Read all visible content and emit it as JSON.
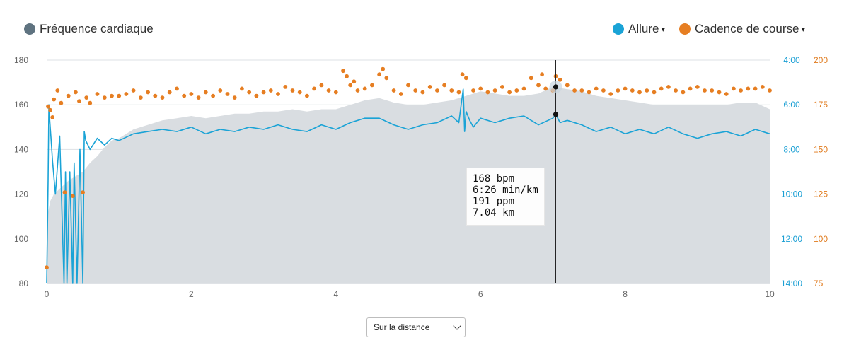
{
  "legend": {
    "heart_rate": {
      "label": "Fréquence cardiaque",
      "color": "#5f7380"
    },
    "pace": {
      "label": "Allure",
      "color": "#1aa3d6",
      "caret": "▾"
    },
    "cadence": {
      "label": "Cadence de course",
      "color": "#e67e22",
      "caret": "▾"
    }
  },
  "tooltip": {
    "heart_rate": "168 bpm",
    "pace": "6:26 min/km",
    "cadence": "191 ppm",
    "distance": "7.04 km"
  },
  "selector": {
    "value": "Sur la distance",
    "icon": "chevron-down-icon"
  },
  "chart_data": {
    "type": "line",
    "x_range": [
      0,
      10
    ],
    "x_ticks": [
      "0",
      "2",
      "4",
      "6",
      "8",
      "10"
    ],
    "left_axis": {
      "series": "Fréquence cardiaque",
      "unit": "bpm",
      "range": [
        80,
        180
      ],
      "ticks": [
        "80",
        "100",
        "120",
        "140",
        "160",
        "180"
      ]
    },
    "pace_axis": {
      "series": "Allure",
      "unit": "min/km",
      "range_min_per_km": [
        14,
        4
      ],
      "ticks": [
        "14:00",
        "12:00",
        "10:00",
        "8:00",
        "6:00",
        "4:00"
      ]
    },
    "cadence_axis": {
      "series": "Cadence de course",
      "unit": "ppm",
      "range": [
        75,
        200
      ],
      "ticks": [
        "75",
        "100",
        "125",
        "150",
        "175",
        "200"
      ]
    },
    "cursor": {
      "x": 7.04
    },
    "heart_rate": {
      "name": "Fréquence cardiaque",
      "color": "#d9dde1",
      "x": [
        0,
        0.02,
        0.05,
        0.1,
        0.2,
        0.3,
        0.4,
        0.5,
        0.6,
        0.7,
        0.8,
        0.9,
        1.0,
        1.2,
        1.4,
        1.6,
        1.8,
        2.0,
        2.2,
        2.4,
        2.6,
        2.8,
        3.0,
        3.2,
        3.4,
        3.6,
        3.8,
        4.0,
        4.2,
        4.4,
        4.6,
        4.8,
        5.0,
        5.2,
        5.4,
        5.6,
        5.8,
        6.0,
        6.2,
        6.4,
        6.6,
        6.8,
        7.0,
        7.2,
        7.4,
        7.6,
        7.8,
        8.0,
        8.2,
        8.4,
        8.6,
        8.8,
        9.0,
        9.2,
        9.4,
        9.6,
        9.8,
        10.0
      ],
      "y": [
        80,
        112,
        117,
        120,
        123,
        126,
        128,
        130,
        134,
        137,
        141,
        144,
        145,
        149,
        151,
        153,
        154,
        155,
        154,
        155,
        156,
        156,
        157,
        157,
        158,
        157,
        158,
        158,
        160,
        162,
        163,
        161,
        160,
        160,
        161,
        162,
        164,
        166,
        165,
        164,
        164,
        165,
        168,
        167,
        166,
        164,
        163,
        162,
        161,
        160,
        160,
        160,
        160,
        160,
        160,
        161,
        161,
        158
      ]
    },
    "pace": {
      "name": "Allure",
      "color": "#1aa3d6",
      "x": [
        0,
        0.02,
        0.03,
        0.04,
        0.06,
        0.08,
        0.12,
        0.18,
        0.24,
        0.26,
        0.28,
        0.32,
        0.36,
        0.38,
        0.42,
        0.46,
        0.5,
        0.52,
        0.54,
        0.6,
        0.7,
        0.8,
        0.9,
        1.0,
        1.2,
        1.4,
        1.6,
        1.8,
        2.0,
        2.2,
        2.4,
        2.6,
        2.8,
        3.0,
        3.2,
        3.4,
        3.6,
        3.8,
        4.0,
        4.2,
        4.4,
        4.6,
        4.8,
        5.0,
        5.2,
        5.4,
        5.6,
        5.7,
        5.76,
        5.78,
        5.8,
        5.85,
        5.9,
        6.0,
        6.2,
        6.4,
        6.6,
        6.8,
        7.0,
        7.04,
        7.1,
        7.2,
        7.4,
        7.6,
        7.8,
        8.0,
        8.2,
        8.4,
        8.6,
        8.8,
        9.0,
        9.2,
        9.4,
        9.6,
        9.8,
        10.0
      ],
      "y_min_per_km": [
        14.0,
        9.4,
        6.0,
        6.6,
        7.5,
        8.5,
        10.0,
        7.4,
        14.0,
        9.0,
        14.0,
        9.0,
        14.0,
        8.6,
        14.0,
        8.0,
        14.0,
        7.2,
        7.6,
        8.0,
        7.5,
        7.8,
        7.5,
        7.6,
        7.3,
        7.2,
        7.1,
        7.2,
        7.0,
        7.3,
        7.1,
        7.2,
        7.0,
        7.1,
        6.9,
        7.1,
        7.2,
        6.9,
        7.1,
        6.8,
        6.6,
        6.6,
        6.9,
        7.1,
        6.9,
        6.8,
        6.5,
        6.8,
        5.3,
        7.2,
        6.3,
        6.7,
        7.0,
        6.6,
        6.8,
        6.6,
        6.5,
        6.9,
        6.6,
        6.43,
        6.8,
        6.7,
        6.9,
        7.2,
        7.0,
        7.3,
        7.1,
        7.3,
        7.0,
        7.3,
        7.5,
        7.3,
        7.2,
        7.4,
        7.1,
        7.3
      ]
    },
    "cadence": {
      "name": "Cadence de course",
      "color": "#e67e22",
      "x": [
        0.0,
        0.02,
        0.05,
        0.08,
        0.25,
        0.36,
        0.5,
        0.1,
        0.15,
        0.2,
        0.3,
        0.4,
        0.45,
        0.55,
        0.6,
        0.7,
        0.8,
        0.9,
        1.0,
        1.1,
        1.2,
        1.3,
        1.4,
        1.5,
        1.6,
        1.7,
        1.8,
        1.9,
        2.0,
        2.1,
        2.2,
        2.3,
        2.4,
        2.5,
        2.6,
        2.7,
        2.8,
        2.9,
        3.0,
        3.1,
        3.2,
        3.3,
        3.4,
        3.5,
        3.6,
        3.7,
        3.8,
        3.9,
        4.0,
        4.1,
        4.15,
        4.2,
        4.25,
        4.3,
        4.4,
        4.5,
        4.6,
        4.65,
        4.7,
        4.8,
        4.9,
        5.0,
        5.1,
        5.2,
        5.3,
        5.4,
        5.5,
        5.6,
        5.7,
        5.75,
        5.8,
        5.9,
        6.0,
        6.1,
        6.2,
        6.3,
        6.4,
        6.5,
        6.6,
        6.7,
        6.8,
        6.85,
        6.9,
        7.0,
        7.04,
        7.1,
        7.2,
        7.3,
        7.4,
        7.5,
        7.6,
        7.7,
        7.8,
        7.9,
        8.0,
        8.1,
        8.2,
        8.3,
        8.4,
        8.5,
        8.6,
        8.7,
        8.8,
        8.9,
        9.0,
        9.1,
        9.2,
        9.3,
        9.4,
        9.5,
        9.6,
        9.7,
        9.8,
        9.9,
        10.0
      ],
      "y": [
        84,
        174,
        172,
        168,
        126,
        124,
        126,
        178,
        183,
        176,
        180,
        182,
        177,
        179,
        176,
        181,
        179,
        180,
        180,
        181,
        183,
        179,
        182,
        180,
        179,
        182,
        184,
        180,
        181,
        179,
        182,
        180,
        183,
        181,
        179,
        184,
        182,
        180,
        182,
        183,
        181,
        185,
        183,
        182,
        180,
        184,
        186,
        183,
        182,
        194,
        191,
        186,
        188,
        183,
        184,
        186,
        192,
        195,
        190,
        183,
        181,
        186,
        183,
        182,
        185,
        183,
        186,
        183,
        182,
        192,
        190,
        183,
        184,
        182,
        183,
        185,
        182,
        183,
        184,
        190,
        186,
        192,
        184,
        183,
        191,
        189,
        186,
        183,
        183,
        182,
        184,
        183,
        181,
        183,
        184,
        183,
        182,
        183,
        182,
        184,
        185,
        183,
        182,
        184,
        185,
        183,
        183,
        182,
        181,
        184,
        183,
        184,
        184,
        185,
        183
      ]
    }
  }
}
